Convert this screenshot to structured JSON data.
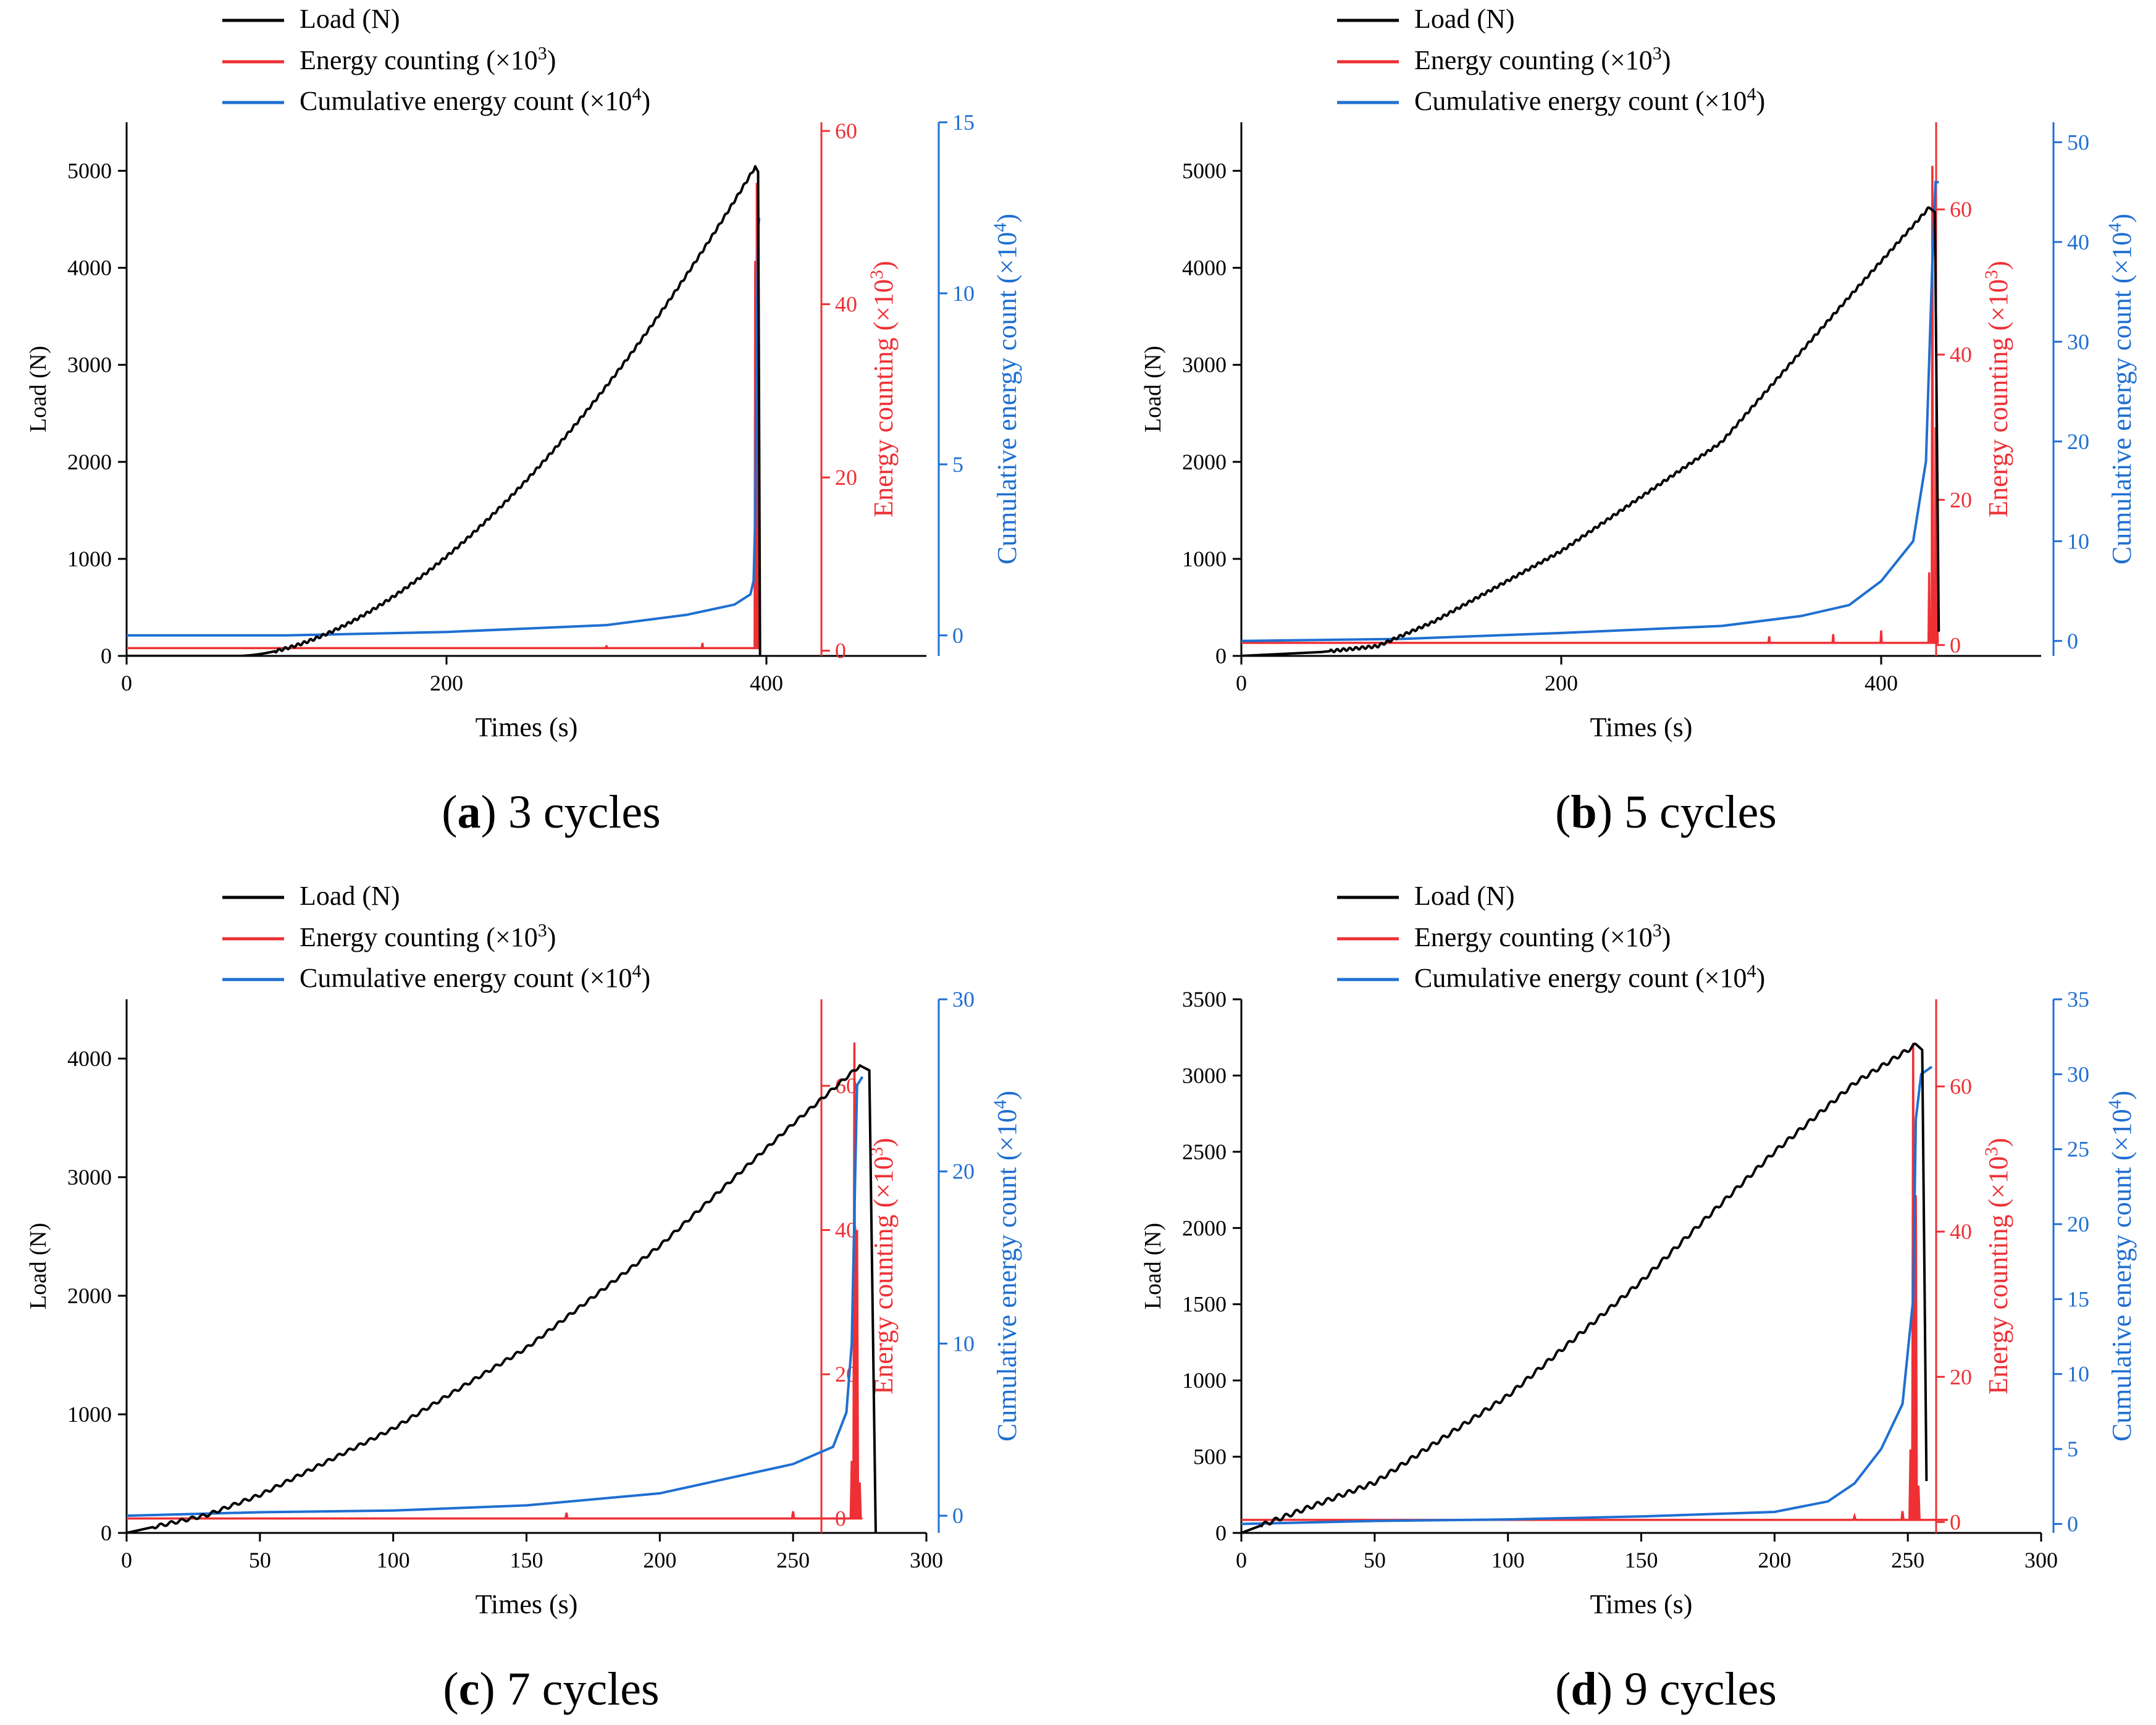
{
  "legend_labels": {
    "load": "Load (N)",
    "energy_base": "Energy counting (×10",
    "energy_exp": "3",
    "cum_base": "Cumulative energy count (×10",
    "cum_exp": "4",
    "close": ")"
  },
  "axis_labels": {
    "x": "Times (s)",
    "y_left": "Load (N)",
    "y_energy_base": "Energy counting (×10",
    "y_energy_exp": "3",
    "y_cum_base": "Cumulative energy count (×10",
    "y_cum_exp": "4",
    "close": ")"
  },
  "colors": {
    "load": "#000000",
    "energy": "#ee3035",
    "cumulative": "#1f6fd1",
    "axis": "#000000"
  },
  "chart_data": [
    {
      "type": "line",
      "caption_letter": "a",
      "caption_text": "3 cycles",
      "xlim": [
        0,
        500
      ],
      "xticks": [
        0,
        200,
        400
      ],
      "ylim_left": [
        0,
        5500
      ],
      "yticks_left": [
        0,
        1000,
        2000,
        3000,
        4000,
        5000
      ],
      "ylim_energy": [
        -0.6,
        61
      ],
      "yticks_energy": [
        0,
        20,
        40,
        60
      ],
      "ylim_cum": [
        -0.6,
        15
      ],
      "yticks_cum": [
        0,
        5,
        10,
        15
      ],
      "load": {
        "start": 70,
        "end": 393,
        "peak": 5040,
        "power": 1.75,
        "drop_to": 0,
        "end_time": 396
      },
      "energy": {
        "base": 0.3,
        "x_end": 394,
        "spikes": [
          [
            300,
            0.6
          ],
          [
            360,
            0.9
          ],
          [
            393,
            45
          ],
          [
            394,
            54
          ],
          [
            395,
            10
          ]
        ]
      },
      "cumulative": [
        [
          0,
          0
        ],
        [
          100,
          0
        ],
        [
          200,
          0.1
        ],
        [
          300,
          0.3
        ],
        [
          350,
          0.6
        ],
        [
          380,
          0.9
        ],
        [
          390,
          1.2
        ],
        [
          392,
          1.6
        ],
        [
          393,
          3.5
        ],
        [
          394,
          9
        ],
        [
          395,
          12
        ],
        [
          395.5,
          12.2
        ]
      ]
    },
    {
      "type": "line",
      "caption_letter": "b",
      "caption_text": "5 cycles",
      "xlim": [
        0,
        500
      ],
      "xticks": [
        0,
        200,
        400
      ],
      "ylim_left": [
        0,
        5500
      ],
      "yticks_left": [
        0,
        1000,
        2000,
        3000,
        4000,
        5000
      ],
      "ylim_energy": [
        -1.5,
        72
      ],
      "yticks_energy": [
        0,
        20,
        40,
        60
      ],
      "ylim_cum": [
        -1.5,
        52
      ],
      "yticks_cum": [
        0,
        10,
        20,
        30,
        40,
        50
      ],
      "load": {
        "start": 0,
        "end": 430,
        "peak": 4620,
        "power": 1.5,
        "drop_to": 250,
        "end_time": 436,
        "knots": [
          [
            0,
            0
          ],
          [
            50,
            40
          ],
          [
            85,
            100
          ],
          [
            120,
            350
          ],
          [
            200,
            1080
          ],
          [
            300,
            2200
          ],
          [
            380,
            3700
          ],
          [
            430,
            4620
          ]
        ]
      },
      "energy": {
        "base": 0.3,
        "x_end": 436,
        "spikes": [
          [
            330,
            1.2
          ],
          [
            370,
            1.5
          ],
          [
            400,
            2
          ],
          [
            430,
            10
          ],
          [
            432,
            66
          ],
          [
            434,
            30
          ],
          [
            435,
            6
          ]
        ]
      },
      "cumulative": [
        [
          0,
          0
        ],
        [
          100,
          0.2
        ],
        [
          200,
          0.8
        ],
        [
          300,
          1.5
        ],
        [
          350,
          2.5
        ],
        [
          380,
          3.6
        ],
        [
          400,
          6
        ],
        [
          420,
          10
        ],
        [
          428,
          18
        ],
        [
          432,
          38
        ],
        [
          434,
          46
        ],
        [
          436,
          46
        ]
      ]
    },
    {
      "type": "line",
      "caption_letter": "c",
      "caption_text": "7 cycles",
      "xlim": [
        0,
        300
      ],
      "xticks": [
        0,
        50,
        100,
        150,
        200,
        250,
        300
      ],
      "ylim_left": [
        0,
        4500
      ],
      "yticks_left": [
        0,
        1000,
        2000,
        3000,
        4000
      ],
      "ylim_energy": [
        -2,
        72
      ],
      "yticks_energy": [
        0,
        20,
        40,
        60
      ],
      "ylim_cum": [
        -1,
        30
      ],
      "yticks_cum": [
        0,
        10,
        20,
        30
      ],
      "load": {
        "start": 0,
        "end": 275,
        "peak": 3940,
        "power": 1.35,
        "drop_to": 0,
        "end_time": 281,
        "knots": [
          [
            0,
            0
          ],
          [
            30,
            150
          ],
          [
            50,
            320
          ],
          [
            100,
            880
          ],
          [
            150,
            1560
          ],
          [
            200,
            2420
          ],
          [
            250,
            3450
          ],
          [
            275,
            3940
          ],
          [
            280,
            3920
          ]
        ]
      },
      "energy": {
        "base": 0,
        "x_end": 276,
        "spikes": [
          [
            165,
            0.8
          ],
          [
            250,
            1
          ],
          [
            272,
            8
          ],
          [
            273,
            66
          ],
          [
            274,
            40
          ],
          [
            275,
            5
          ]
        ]
      },
      "cumulative": [
        [
          0,
          0
        ],
        [
          50,
          0.2
        ],
        [
          100,
          0.3
        ],
        [
          150,
          0.6
        ],
        [
          200,
          1.3
        ],
        [
          250,
          3
        ],
        [
          265,
          4
        ],
        [
          270,
          6
        ],
        [
          272,
          10
        ],
        [
          274,
          25
        ],
        [
          276,
          25.5
        ]
      ]
    },
    {
      "type": "line",
      "caption_letter": "d",
      "caption_text": "9 cycles",
      "xlim": [
        0,
        300
      ],
      "xticks": [
        0,
        50,
        100,
        150,
        200,
        250,
        300
      ],
      "ylim_left": [
        0,
        3500
      ],
      "yticks_left": [
        0,
        500,
        1000,
        1500,
        2000,
        2500,
        3000,
        3500
      ],
      "ylim_energy": [
        -1.5,
        72
      ],
      "yticks_energy": [
        0,
        20,
        40,
        60
      ],
      "ylim_cum": [
        -0.6,
        35
      ],
      "yticks_cum": [
        0,
        5,
        10,
        15,
        20,
        25,
        30,
        35
      ],
      "load": {
        "start": 0,
        "end": 253,
        "peak": 3200,
        "power": 1.2,
        "drop_to": 340,
        "end_time": 257,
        "knots": [
          [
            0,
            0
          ],
          [
            50,
            330
          ],
          [
            100,
            900
          ],
          [
            150,
            1650
          ],
          [
            200,
            2500
          ],
          [
            230,
            2950
          ],
          [
            253,
            3200
          ],
          [
            255,
            3150
          ]
        ]
      },
      "energy": {
        "base": 0.3,
        "x_end": 265,
        "spikes": [
          [
            230,
            0.8
          ],
          [
            248,
            1.5
          ],
          [
            251,
            10
          ],
          [
            252,
            66
          ],
          [
            253,
            45
          ],
          [
            254,
            5
          ]
        ]
      },
      "cumulative": [
        [
          0,
          0
        ],
        [
          50,
          0.2
        ],
        [
          100,
          0.3
        ],
        [
          150,
          0.5
        ],
        [
          200,
          0.8
        ],
        [
          220,
          1.5
        ],
        [
          230,
          2.7
        ],
        [
          240,
          5
        ],
        [
          248,
          8
        ],
        [
          252,
          15
        ],
        [
          253,
          27
        ],
        [
          255,
          30
        ],
        [
          259,
          30.5
        ]
      ]
    }
  ]
}
